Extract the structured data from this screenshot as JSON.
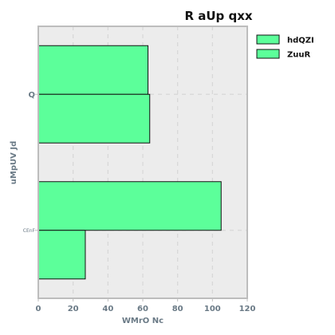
{
  "chart_data": {
    "type": "bar",
    "orientation": "horizontal",
    "title": "R aUp qxx",
    "xlabel": "WMrO  Nc",
    "ylabel": "uMpUV Jd",
    "categories": [
      "Q",
      "CEnF"
    ],
    "series": [
      {
        "name": "hdQZI",
        "values": [
          63,
          105
        ]
      },
      {
        "name": "ZuuR",
        "values": [
          64,
          27
        ]
      }
    ],
    "xlim": [
      0,
      120
    ],
    "xticks": [
      0,
      20,
      40,
      60,
      80,
      100,
      120
    ],
    "grid": true,
    "legend_position": "top-right",
    "colors": {
      "bar_fill": "#5cff9a",
      "bar_stroke": "#111111",
      "plot_bg": "#ececec",
      "frame": "#bdbdbd",
      "grid": "#d7d7d7",
      "label_text": "#6a7a86"
    }
  }
}
